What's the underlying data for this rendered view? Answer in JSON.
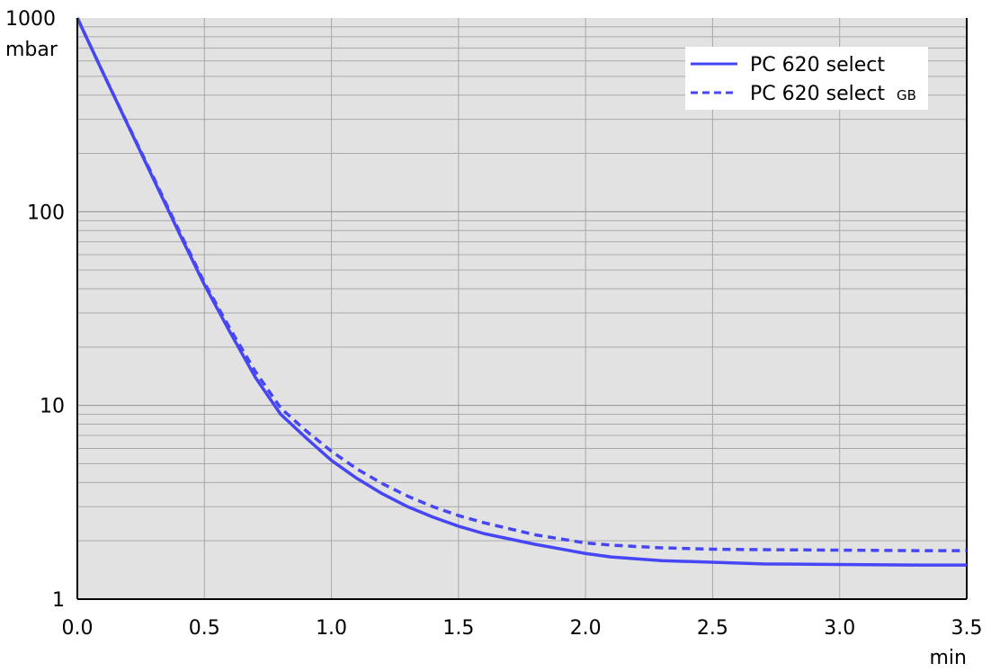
{
  "chart_data": {
    "type": "line",
    "x_scale": "linear",
    "y_scale": "log",
    "xlim": [
      0,
      3.5
    ],
    "ylim": [
      1,
      1000
    ],
    "x_ticks": [
      "0.0",
      "0.5",
      "1.0",
      "1.5",
      "2.0",
      "2.5",
      "3.0",
      "3.5"
    ],
    "y_ticks": [
      "1",
      "10",
      "100",
      "1000"
    ],
    "xunit": "min",
    "yunit": "mbar",
    "grid": true,
    "legend": {
      "position": "top-right",
      "entries": [
        {
          "text": "PC 620 select",
          "suffix": ""
        },
        {
          "text": "PC 620 select",
          "suffix": "GB"
        }
      ]
    },
    "series": [
      {
        "line_style": "solid",
        "color": "#4646f5",
        "x": [
          0,
          0.1,
          0.2,
          0.3,
          0.4,
          0.5,
          0.6,
          0.7,
          0.8,
          0.9,
          1.0,
          1.1,
          1.2,
          1.3,
          1.4,
          1.5,
          1.6,
          1.8,
          2.0,
          2.1,
          2.3,
          2.5,
          2.7,
          3.0,
          3.3,
          3.5
        ],
        "y": [
          1000,
          525,
          278,
          147,
          78,
          42,
          24,
          14,
          9,
          6.8,
          5.2,
          4.2,
          3.5,
          3.0,
          2.65,
          2.38,
          2.18,
          1.92,
          1.72,
          1.65,
          1.58,
          1.55,
          1.52,
          1.51,
          1.5,
          1.5
        ]
      },
      {
        "line_style": "dashed",
        "color": "#4646f5",
        "x": [
          0,
          0.1,
          0.2,
          0.3,
          0.4,
          0.5,
          0.6,
          0.7,
          0.8,
          0.9,
          1.0,
          1.1,
          1.2,
          1.3,
          1.4,
          1.5,
          1.6,
          1.8,
          2.0,
          2.1,
          2.3,
          2.5,
          2.7,
          3.0,
          3.3,
          3.5
        ],
        "y": [
          1000,
          525,
          280,
          150,
          80,
          43,
          25,
          15,
          9.7,
          7.4,
          5.8,
          4.7,
          3.95,
          3.4,
          3.0,
          2.7,
          2.48,
          2.15,
          1.95,
          1.9,
          1.84,
          1.81,
          1.8,
          1.79,
          1.78,
          1.78
        ]
      }
    ]
  }
}
